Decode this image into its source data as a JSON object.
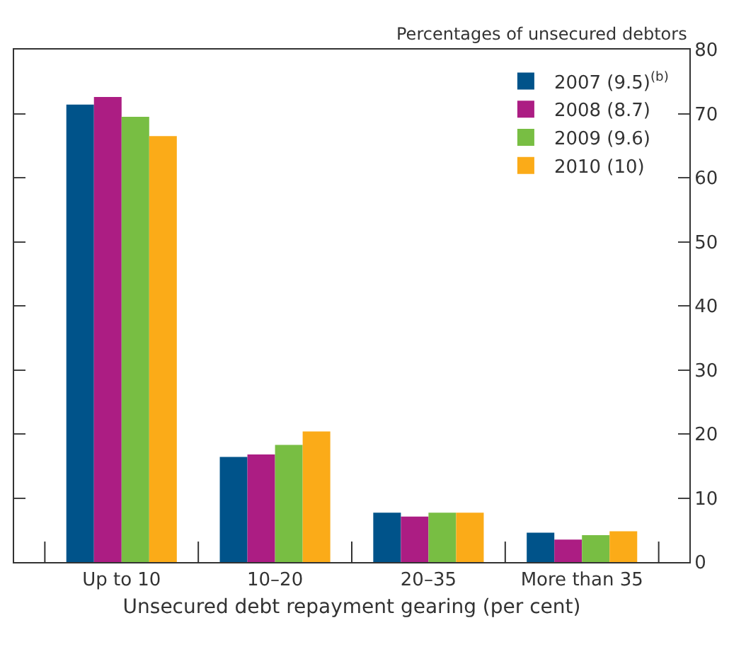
{
  "chart_data": {
    "type": "bar",
    "ylabel": "Percentages of unsecured debtors",
    "xlabel": "Unsecured debt repayment gearing (per cent)",
    "categories": [
      "Up to 10",
      "10–20",
      "20–35",
      "More than 35"
    ],
    "series": [
      {
        "name": "2007 (9.5)$^{(b)}$",
        "color": "#00538a",
        "values": [
          71.4,
          16.4,
          7.7,
          4.6
        ]
      },
      {
        "name": "2008 (8.7)",
        "color": "#ac1d83",
        "values": [
          72.6,
          16.8,
          7.1,
          3.5
        ]
      },
      {
        "name": "2009 (9.6)",
        "color": "#78be43",
        "values": [
          69.5,
          18.3,
          7.7,
          4.2
        ]
      },
      {
        "name": "2010 (10)",
        "color": "#fbab18",
        "values": [
          66.5,
          20.4,
          7.7,
          4.8
        ]
      }
    ],
    "ylim": [
      0,
      80
    ],
    "yticks": [
      0,
      10,
      20,
      30,
      40,
      50,
      60,
      70,
      80
    ],
    "legend": "top right"
  }
}
